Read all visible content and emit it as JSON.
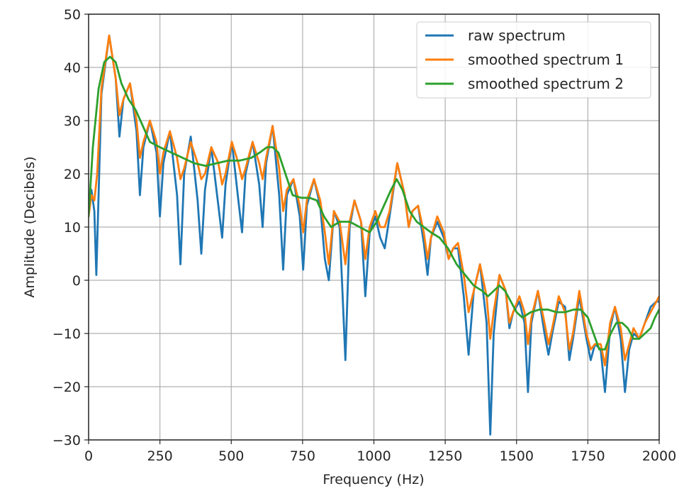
{
  "chart_data": {
    "type": "line",
    "title": "",
    "xlabel": "Frequency (Hz)",
    "ylabel": "Amplitude (Decibels)",
    "xlim": [
      0,
      2000
    ],
    "ylim": [
      -30,
      50
    ],
    "xticks": [
      0,
      250,
      500,
      750,
      1000,
      1250,
      1500,
      1750,
      2000
    ],
    "yticks": [
      -30,
      -20,
      -10,
      0,
      10,
      20,
      30,
      40,
      50
    ],
    "grid": true,
    "legend_position": "top-right",
    "series": [
      {
        "name": "raw spectrum",
        "color": "#1f77b4",
        "x": [
          0,
          10,
          20,
          27,
          45,
          72,
          95,
          108,
          122,
          145,
          168,
          180,
          192,
          215,
          238,
          250,
          262,
          285,
          310,
          322,
          335,
          358,
          382,
          395,
          408,
          430,
          455,
          468,
          480,
          502,
          525,
          538,
          550,
          575,
          598,
          610,
          622,
          645,
          668,
          682,
          695,
          718,
          740,
          752,
          765,
          790,
          812,
          828,
          842,
          860,
          880,
          900,
          915,
          932,
          955,
          970,
          985,
          1005,
          1022,
          1038,
          1055,
          1082,
          1108,
          1122,
          1135,
          1155,
          1175,
          1188,
          1200,
          1222,
          1245,
          1262,
          1278,
          1295,
          1315,
          1332,
          1350,
          1372,
          1395,
          1408,
          1420,
          1440,
          1462,
          1475,
          1488,
          1510,
          1528,
          1540,
          1552,
          1575,
          1598,
          1612,
          1625,
          1648,
          1670,
          1685,
          1698,
          1720,
          1745,
          1760,
          1775,
          1795,
          1810,
          1828,
          1845,
          1865,
          1880,
          1895,
          1910,
          1930,
          1950,
          1970,
          1990,
          2000
        ],
        "y": [
          15,
          17,
          13,
          1,
          35,
          46,
          38,
          27,
          34,
          37,
          28,
          16,
          25,
          30,
          24,
          12,
          22,
          28,
          16,
          3,
          20,
          27,
          15,
          5,
          17,
          25,
          14,
          8,
          18,
          26,
          15,
          9,
          20,
          26,
          18,
          10,
          22,
          29,
          16,
          2,
          16,
          19,
          12,
          2,
          14,
          19,
          14,
          4,
          0,
          13,
          10,
          -15,
          10,
          15,
          11,
          -3,
          9,
          12,
          8,
          6,
          12,
          22,
          16,
          10,
          13,
          14,
          7,
          1,
          8,
          11,
          8,
          4,
          6,
          6,
          -3,
          -14,
          -2,
          3,
          -8,
          -29,
          -10,
          1,
          -2,
          -9,
          -6,
          -4,
          -8,
          -21,
          -8,
          -2,
          -10,
          -14,
          -10,
          -4,
          -5,
          -15,
          -11,
          -3,
          -11,
          -15,
          -12,
          -13,
          -21,
          -9,
          -5,
          -11,
          -21,
          -13,
          -10,
          -11,
          -8,
          -5,
          -4,
          -4
        ],
        "line_width": 2.8
      },
      {
        "name": "smoothed spectrum 1",
        "color": "#ff7f0e",
        "x": [
          0,
          10,
          20,
          30,
          45,
          72,
          95,
          108,
          122,
          145,
          168,
          180,
          192,
          215,
          238,
          250,
          262,
          285,
          310,
          322,
          335,
          358,
          382,
          395,
          408,
          430,
          455,
          468,
          480,
          502,
          525,
          538,
          550,
          575,
          598,
          610,
          622,
          645,
          668,
          682,
          695,
          718,
          740,
          752,
          765,
          790,
          812,
          828,
          842,
          860,
          880,
          900,
          915,
          932,
          955,
          970,
          985,
          1005,
          1022,
          1038,
          1055,
          1082,
          1108,
          1122,
          1135,
          1155,
          1175,
          1188,
          1200,
          1222,
          1245,
          1262,
          1278,
          1295,
          1315,
          1332,
          1350,
          1372,
          1395,
          1408,
          1420,
          1440,
          1462,
          1475,
          1488,
          1510,
          1528,
          1540,
          1552,
          1575,
          1598,
          1612,
          1625,
          1648,
          1670,
          1685,
          1698,
          1720,
          1745,
          1760,
          1775,
          1795,
          1810,
          1828,
          1845,
          1865,
          1880,
          1895,
          1910,
          1930,
          1950,
          1970,
          1990,
          2000
        ],
        "y": [
          12,
          16,
          15,
          20,
          36,
          46,
          38,
          31,
          34,
          37,
          30,
          23,
          26,
          30,
          26,
          20,
          24,
          28,
          23,
          19,
          21,
          26,
          22,
          19,
          20,
          25,
          22,
          18,
          20,
          26,
          22,
          19,
          21,
          26,
          22,
          19,
          23,
          29,
          21,
          13,
          17,
          19,
          14,
          9,
          15,
          19,
          15,
          9,
          3,
          13,
          11,
          3,
          11,
          15,
          11,
          4,
          10,
          13,
          10,
          10,
          13,
          22,
          16,
          10,
          13,
          14,
          9,
          4,
          8,
          12,
          9,
          4,
          6,
          7,
          1,
          -6,
          -2,
          3,
          -3,
          -11,
          -6,
          1,
          -2,
          -8,
          -6,
          -3,
          -6,
          -12,
          -7,
          -2,
          -8,
          -12,
          -9,
          -3,
          -6,
          -13,
          -10,
          -2,
          -10,
          -13,
          -12,
          -12,
          -16,
          -8,
          -5,
          -9,
          -15,
          -12,
          -9,
          -11,
          -8,
          -6,
          -4,
          -3
        ],
        "line_width": 2.8
      },
      {
        "name": "smoothed spectrum 2",
        "color": "#2ca02c",
        "x": [
          0,
          15,
          35,
          55,
          75,
          95,
          115,
          140,
          165,
          190,
          215,
          250,
          290,
          330,
          370,
          410,
          450,
          490,
          530,
          570,
          600,
          625,
          645,
          665,
          690,
          715,
          745,
          775,
          800,
          825,
          850,
          880,
          915,
          950,
          985,
          1010,
          1035,
          1060,
          1080,
          1100,
          1125,
          1150,
          1175,
          1200,
          1230,
          1260,
          1290,
          1320,
          1350,
          1380,
          1400,
          1420,
          1440,
          1460,
          1480,
          1500,
          1520,
          1550,
          1580,
          1610,
          1640,
          1670,
          1700,
          1725,
          1750,
          1770,
          1790,
          1810,
          1830,
          1850,
          1870,
          1890,
          1910,
          1930,
          1950,
          1970,
          1985,
          2000
        ],
        "y": [
          12,
          25,
          36,
          41,
          42,
          41,
          37,
          34,
          32,
          29,
          26,
          25,
          24,
          23,
          22,
          21.5,
          22,
          22.5,
          22.5,
          23,
          24,
          25,
          25,
          24,
          20,
          16,
          15.5,
          15.5,
          15,
          12,
          10,
          11,
          11,
          10,
          9,
          11,
          14,
          17,
          19,
          17,
          13,
          11,
          10,
          9,
          8,
          6,
          3,
          1,
          -1,
          -2,
          -3,
          -2,
          -1,
          -2,
          -4,
          -6,
          -7,
          -6,
          -5.5,
          -5.5,
          -6,
          -6,
          -5.5,
          -5.5,
          -7,
          -10,
          -13,
          -13,
          -10,
          -8,
          -8,
          -9,
          -11,
          -11,
          -10,
          -9,
          -7,
          -5.5
        ],
        "line_width": 2.8
      }
    ]
  }
}
